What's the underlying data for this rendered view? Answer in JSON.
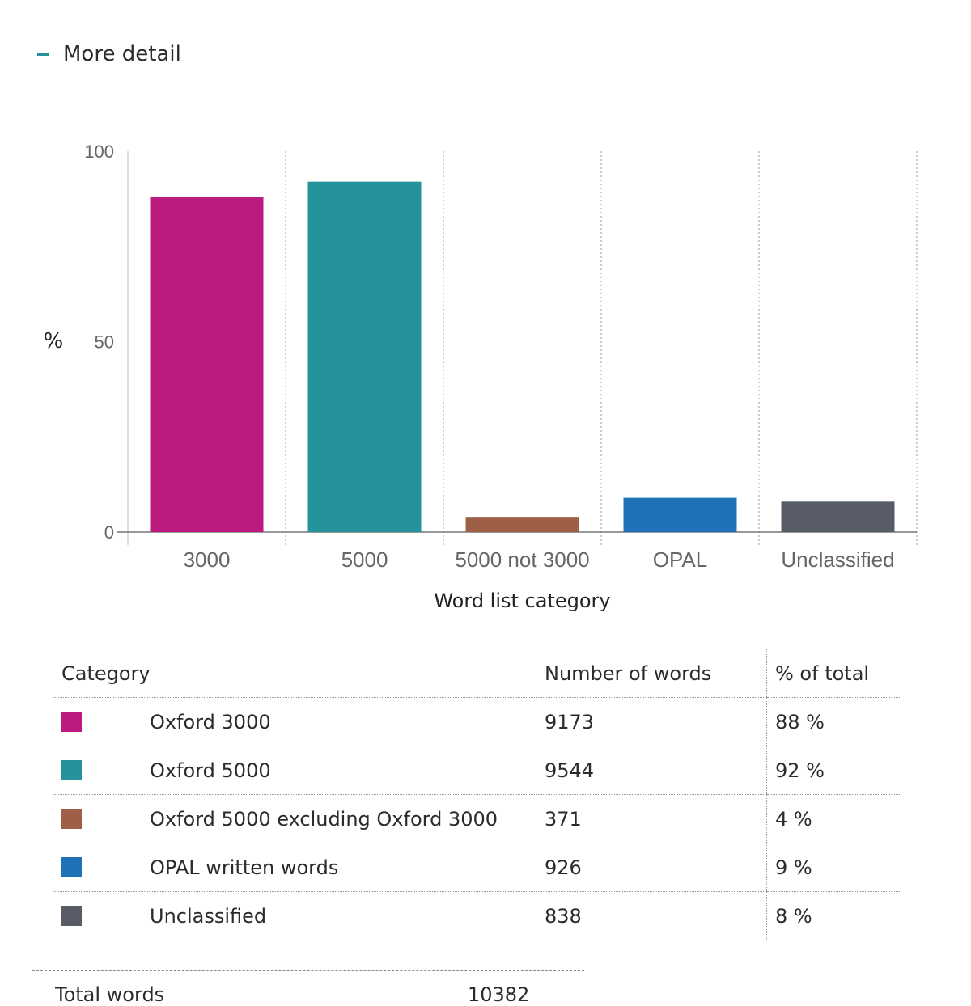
{
  "toggle": {
    "icon": "minus-icon",
    "label": "More detail"
  },
  "chart_data": {
    "type": "bar",
    "categories": [
      "3000",
      "5000",
      "5000 not 3000",
      "OPAL",
      "Unclassified"
    ],
    "values": [
      88,
      92,
      4,
      9,
      8
    ],
    "colors": [
      "#bb1a7e",
      "#24939b",
      "#9e5f47",
      "#1f72b7",
      "#575c66"
    ],
    "xlabel": "Word list category",
    "ylabel": "%",
    "ylim": [
      0,
      100
    ],
    "yticks": [
      0,
      50,
      100
    ]
  },
  "table": {
    "headers": {
      "category": "Category",
      "number": "Number of words",
      "percent": "% of total"
    },
    "rows": [
      {
        "color": "#bb1a7e",
        "category": "Oxford 3000",
        "number": "9173",
        "percent": "88 %"
      },
      {
        "color": "#24939b",
        "category": "Oxford 5000",
        "number": "9544",
        "percent": "92 %"
      },
      {
        "color": "#9e5f47",
        "category": "Oxford 5000 excluding Oxford 3000",
        "number": "371",
        "percent": "4 %"
      },
      {
        "color": "#1f72b7",
        "category": "OPAL written words",
        "number": "926",
        "percent": "9 %"
      },
      {
        "color": "#575c66",
        "category": "Unclassified",
        "number": "838",
        "percent": "8 %"
      }
    ]
  },
  "total": {
    "label": "Total words",
    "value": "10382"
  }
}
